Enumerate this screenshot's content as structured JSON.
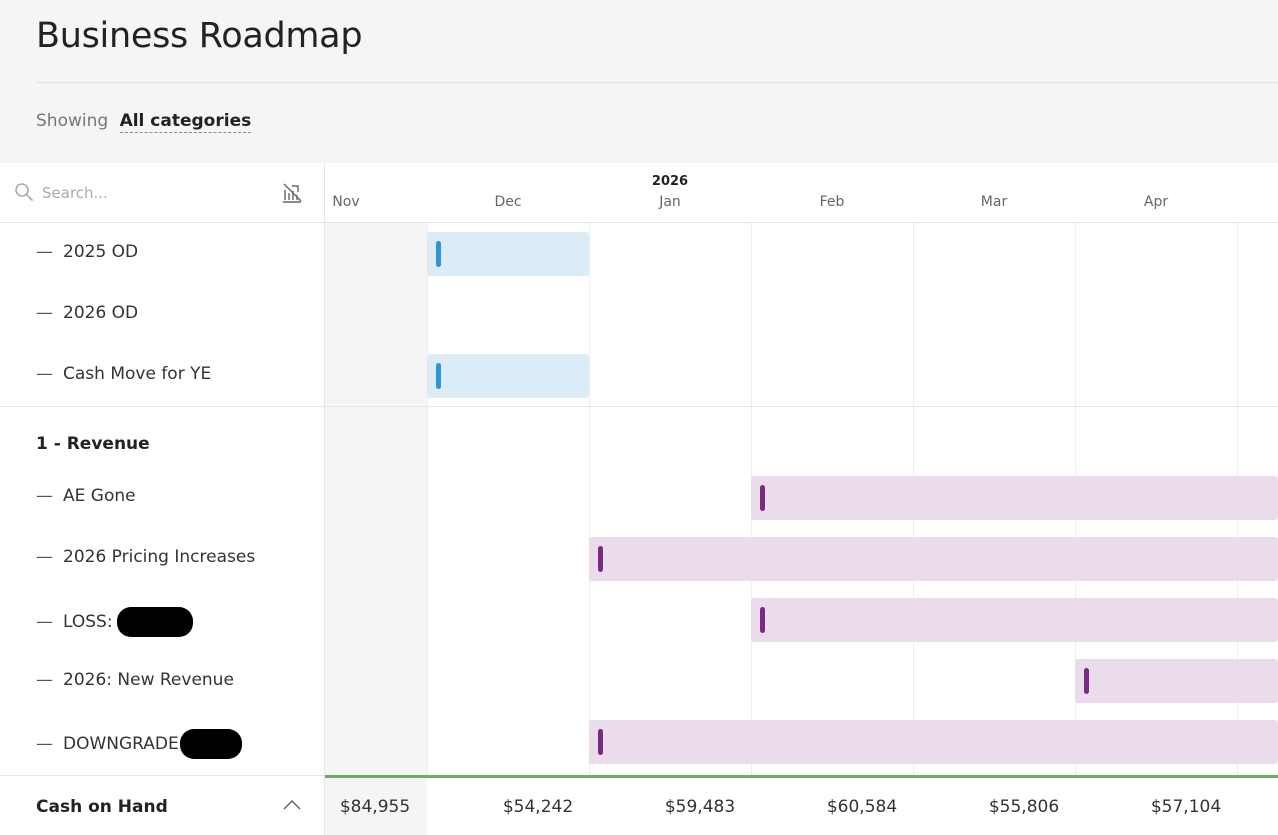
{
  "page": {
    "title": "Business Roadmap",
    "filter_prefix": "Showing",
    "filter_value": "All categories"
  },
  "search": {
    "placeholder": "Search...",
    "value": ""
  },
  "timeline": {
    "year": "2026",
    "months": [
      "Nov",
      "Dec",
      "Jan",
      "Feb",
      "Mar",
      "Apr"
    ]
  },
  "rows": [
    {
      "label": "2025 OD",
      "dash": "—"
    },
    {
      "label": "2026 OD",
      "dash": "—"
    },
    {
      "label": "Cash Move for YE",
      "dash": "—"
    }
  ],
  "revenue_group": {
    "label": "1 - Revenue",
    "rows": [
      {
        "label": "AE Gone",
        "dash": "—"
      },
      {
        "label": "2026 Pricing Increases",
        "dash": "—"
      },
      {
        "label": "LOSS:",
        "dash": "—"
      },
      {
        "label": "2026: New Revenue",
        "dash": "—"
      },
      {
        "label": "DOWNGRADE",
        "dash": "—"
      }
    ]
  },
  "footer": {
    "label": "Cash on Hand",
    "values": [
      "$84,955",
      "$54,242",
      "$59,483",
      "$60,584",
      "$55,806",
      "$57,104"
    ]
  },
  "colors": {
    "blue_bar": "#dcecf7",
    "blue_handle": "#2f93d9",
    "purple_bar": "#eadcea",
    "purple_handle": "#7a2a80",
    "cash_line": "#6cab6c"
  }
}
